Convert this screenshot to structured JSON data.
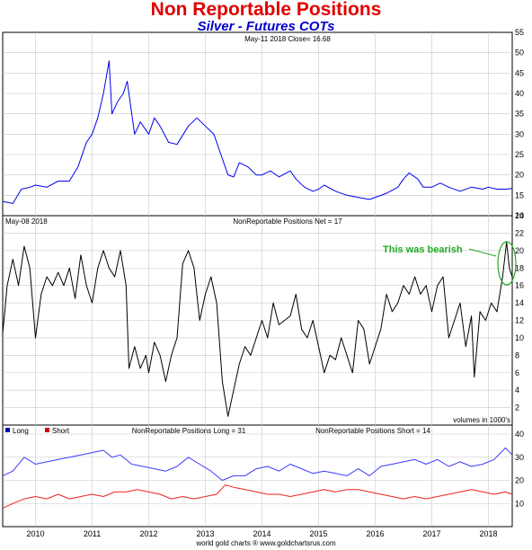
{
  "page": {
    "title": "Non Reportable Positions",
    "subtitle": "Silver - Futures COTs"
  },
  "colors": {
    "title": "#e00000",
    "subtitle": "#0000cc",
    "price": "#0000ee",
    "net": "#000000",
    "long": "#3a3aff",
    "short": "#ee2222",
    "annotation": "#22aa22"
  },
  "footer": "world gold charts ® www.goldchartsrus.com",
  "chart_data": [
    {
      "type": "line",
      "header": "May-11  2018   Close= 16.68",
      "x_range": [
        2009.42,
        2018.42
      ],
      "ylim": [
        10,
        55
      ],
      "yticks": [
        10,
        15,
        20,
        25,
        30,
        35,
        40,
        45,
        50,
        55
      ],
      "grid": true,
      "series": [
        {
          "color": "#0000ee",
          "points": [
            [
              2009.42,
              13.5
            ],
            [
              2009.6,
              13.0
            ],
            [
              2009.75,
              16.5
            ],
            [
              2009.9,
              17.0
            ],
            [
              2010.0,
              17.5
            ],
            [
              2010.2,
              17.0
            ],
            [
              2010.4,
              18.5
            ],
            [
              2010.6,
              18.5
            ],
            [
              2010.75,
              22.0
            ],
            [
              2010.9,
              28.0
            ],
            [
              2011.0,
              30.0
            ],
            [
              2011.1,
              34.0
            ],
            [
              2011.2,
              40.0
            ],
            [
              2011.3,
              48.0
            ],
            [
              2011.35,
              35.0
            ],
            [
              2011.45,
              38.0
            ],
            [
              2011.55,
              40.0
            ],
            [
              2011.62,
              43.0
            ],
            [
              2011.7,
              35.0
            ],
            [
              2011.75,
              30.0
            ],
            [
              2011.85,
              33.0
            ],
            [
              2012.0,
              30.0
            ],
            [
              2012.1,
              34.0
            ],
            [
              2012.2,
              32.0
            ],
            [
              2012.35,
              28.0
            ],
            [
              2012.5,
              27.5
            ],
            [
              2012.7,
              32.0
            ],
            [
              2012.85,
              34.0
            ],
            [
              2013.0,
              32.0
            ],
            [
              2013.15,
              30.0
            ],
            [
              2013.3,
              24.0
            ],
            [
              2013.4,
              20.0
            ],
            [
              2013.5,
              19.5
            ],
            [
              2013.6,
              23.0
            ],
            [
              2013.75,
              22.0
            ],
            [
              2013.9,
              20.0
            ],
            [
              2014.0,
              20.0
            ],
            [
              2014.15,
              21.0
            ],
            [
              2014.3,
              19.5
            ],
            [
              2014.5,
              21.0
            ],
            [
              2014.6,
              19.0
            ],
            [
              2014.75,
              17.0
            ],
            [
              2014.9,
              16.0
            ],
            [
              2015.0,
              16.5
            ],
            [
              2015.1,
              17.5
            ],
            [
              2015.3,
              16.0
            ],
            [
              2015.5,
              15.0
            ],
            [
              2015.7,
              14.5
            ],
            [
              2015.9,
              14.0
            ],
            [
              2016.0,
              14.5
            ],
            [
              2016.2,
              15.5
            ],
            [
              2016.4,
              17.0
            ],
            [
              2016.5,
              19.0
            ],
            [
              2016.6,
              20.5
            ],
            [
              2016.75,
              19.0
            ],
            [
              2016.85,
              17.0
            ],
            [
              2017.0,
              17.0
            ],
            [
              2017.15,
              18.0
            ],
            [
              2017.3,
              17.0
            ],
            [
              2017.5,
              16.0
            ],
            [
              2017.7,
              17.0
            ],
            [
              2017.9,
              16.5
            ],
            [
              2018.0,
              17.0
            ],
            [
              2018.15,
              16.5
            ],
            [
              2018.3,
              16.5
            ],
            [
              2018.42,
              16.68
            ]
          ]
        }
      ]
    },
    {
      "type": "line",
      "date_label": "May-08  2018",
      "header": "NonReportable Positions Net = 17",
      "note": "volumes in 1000's",
      "annotation": "This was bearish",
      "x_range": [
        2009.42,
        2018.42
      ],
      "ylim": [
        0,
        24
      ],
      "yticks": [
        2,
        4,
        6,
        8,
        10,
        12,
        14,
        16,
        18,
        20,
        22,
        24
      ],
      "grid": true,
      "series": [
        {
          "color": "#000000",
          "points": [
            [
              2009.42,
              10.5
            ],
            [
              2009.5,
              16.0
            ],
            [
              2009.6,
              19.0
            ],
            [
              2009.7,
              16.0
            ],
            [
              2009.8,
              20.5
            ],
            [
              2009.9,
              18.0
            ],
            [
              2010.0,
              10.0
            ],
            [
              2010.1,
              15.0
            ],
            [
              2010.2,
              17.0
            ],
            [
              2010.3,
              16.0
            ],
            [
              2010.4,
              17.5
            ],
            [
              2010.5,
              16.0
            ],
            [
              2010.6,
              18.0
            ],
            [
              2010.7,
              14.5
            ],
            [
              2010.8,
              19.5
            ],
            [
              2010.9,
              16.0
            ],
            [
              2011.0,
              14.0
            ],
            [
              2011.1,
              18.0
            ],
            [
              2011.2,
              20.0
            ],
            [
              2011.3,
              18.0
            ],
            [
              2011.4,
              17.0
            ],
            [
              2011.5,
              20.0
            ],
            [
              2011.6,
              16.0
            ],
            [
              2011.65,
              6.5
            ],
            [
              2011.75,
              9.0
            ],
            [
              2011.85,
              6.5
            ],
            [
              2011.95,
              8.0
            ],
            [
              2012.0,
              6.0
            ],
            [
              2012.1,
              9.5
            ],
            [
              2012.2,
              8.0
            ],
            [
              2012.3,
              5.0
            ],
            [
              2012.4,
              8.0
            ],
            [
              2012.5,
              10.0
            ],
            [
              2012.6,
              18.5
            ],
            [
              2012.7,
              20.0
            ],
            [
              2012.8,
              18.0
            ],
            [
              2012.9,
              12.0
            ],
            [
              2013.0,
              15.0
            ],
            [
              2013.1,
              17.0
            ],
            [
              2013.2,
              14.0
            ],
            [
              2013.3,
              5.0
            ],
            [
              2013.4,
              1.0
            ],
            [
              2013.5,
              4.0
            ],
            [
              2013.6,
              7.0
            ],
            [
              2013.7,
              9.0
            ],
            [
              2013.8,
              8.0
            ],
            [
              2013.9,
              10.0
            ],
            [
              2014.0,
              12.0
            ],
            [
              2014.1,
              10.0
            ],
            [
              2014.2,
              14.0
            ],
            [
              2014.3,
              11.5
            ],
            [
              2014.4,
              12.0
            ],
            [
              2014.5,
              12.5
            ],
            [
              2014.6,
              15.0
            ],
            [
              2014.7,
              11.0
            ],
            [
              2014.8,
              10.0
            ],
            [
              2014.9,
              12.0
            ],
            [
              2015.0,
              9.0
            ],
            [
              2015.1,
              6.0
            ],
            [
              2015.2,
              8.0
            ],
            [
              2015.3,
              7.5
            ],
            [
              2015.4,
              10.0
            ],
            [
              2015.5,
              8.0
            ],
            [
              2015.6,
              6.0
            ],
            [
              2015.7,
              12.0
            ],
            [
              2015.8,
              11.0
            ],
            [
              2015.9,
              7.0
            ],
            [
              2016.0,
              9.0
            ],
            [
              2016.1,
              11.0
            ],
            [
              2016.2,
              15.0
            ],
            [
              2016.3,
              13.0
            ],
            [
              2016.4,
              14.0
            ],
            [
              2016.5,
              16.0
            ],
            [
              2016.6,
              15.0
            ],
            [
              2016.7,
              17.0
            ],
            [
              2016.8,
              15.0
            ],
            [
              2016.9,
              16.0
            ],
            [
              2017.0,
              13.0
            ],
            [
              2017.1,
              16.0
            ],
            [
              2017.2,
              17.0
            ],
            [
              2017.3,
              10.0
            ],
            [
              2017.4,
              12.0
            ],
            [
              2017.5,
              14.0
            ],
            [
              2017.6,
              9.0
            ],
            [
              2017.7,
              12.5
            ],
            [
              2017.75,
              5.5
            ],
            [
              2017.85,
              13.0
            ],
            [
              2017.95,
              12.0
            ],
            [
              2018.05,
              14.0
            ],
            [
              2018.15,
              13.0
            ],
            [
              2018.25,
              17.0
            ],
            [
              2018.32,
              21.0
            ],
            [
              2018.37,
              18.0
            ],
            [
              2018.42,
              17.0
            ]
          ]
        }
      ]
    },
    {
      "type": "line",
      "header_long": "NonReportable Positions Long = 31",
      "header_short": "NonReportable Positions Short = 14",
      "x_range": [
        2009.42,
        2018.42
      ],
      "ylim": [
        0,
        40
      ],
      "yticks": [
        10,
        20,
        30,
        40
      ],
      "grid": true,
      "xticks": [
        "2010",
        "2011",
        "2012",
        "2013",
        "2014",
        "2015",
        "2016",
        "2017",
        "2018"
      ],
      "legend": [
        "Long",
        "Short"
      ],
      "series": [
        {
          "name": "Long",
          "color": "#3a3aff",
          "points": [
            [
              2009.42,
              22
            ],
            [
              2009.6,
              24
            ],
            [
              2009.8,
              30
            ],
            [
              2010.0,
              27
            ],
            [
              2010.2,
              28
            ],
            [
              2010.4,
              29
            ],
            [
              2010.6,
              30
            ],
            [
              2010.8,
              31
            ],
            [
              2011.0,
              32
            ],
            [
              2011.2,
              33
            ],
            [
              2011.35,
              30
            ],
            [
              2011.5,
              31
            ],
            [
              2011.7,
              27
            ],
            [
              2011.9,
              26
            ],
            [
              2012.1,
              25
            ],
            [
              2012.3,
              24
            ],
            [
              2012.5,
              26
            ],
            [
              2012.7,
              30
            ],
            [
              2012.9,
              27
            ],
            [
              2013.1,
              24
            ],
            [
              2013.3,
              20
            ],
            [
              2013.5,
              22
            ],
            [
              2013.7,
              22
            ],
            [
              2013.9,
              25
            ],
            [
              2014.1,
              26
            ],
            [
              2014.3,
              24
            ],
            [
              2014.5,
              27
            ],
            [
              2014.7,
              25
            ],
            [
              2014.9,
              23
            ],
            [
              2015.1,
              24
            ],
            [
              2015.3,
              23
            ],
            [
              2015.5,
              22
            ],
            [
              2015.7,
              25
            ],
            [
              2015.9,
              22
            ],
            [
              2016.1,
              26
            ],
            [
              2016.3,
              27
            ],
            [
              2016.5,
              28
            ],
            [
              2016.7,
              29
            ],
            [
              2016.9,
              27
            ],
            [
              2017.1,
              29
            ],
            [
              2017.3,
              26
            ],
            [
              2017.5,
              28
            ],
            [
              2017.7,
              26
            ],
            [
              2017.9,
              27
            ],
            [
              2018.1,
              29
            ],
            [
              2018.3,
              34
            ],
            [
              2018.42,
              31
            ]
          ]
        },
        {
          "name": "Short",
          "color": "#ee2222",
          "points": [
            [
              2009.42,
              8
            ],
            [
              2009.6,
              10
            ],
            [
              2009.8,
              12
            ],
            [
              2010.0,
              13
            ],
            [
              2010.2,
              12
            ],
            [
              2010.4,
              14
            ],
            [
              2010.6,
              12
            ],
            [
              2010.8,
              13
            ],
            [
              2011.0,
              14
            ],
            [
              2011.2,
              13
            ],
            [
              2011.4,
              15
            ],
            [
              2011.6,
              15
            ],
            [
              2011.8,
              16
            ],
            [
              2012.0,
              15
            ],
            [
              2012.2,
              14
            ],
            [
              2012.4,
              12
            ],
            [
              2012.6,
              13
            ],
            [
              2012.8,
              12
            ],
            [
              2013.0,
              13
            ],
            [
              2013.2,
              14
            ],
            [
              2013.35,
              18
            ],
            [
              2013.5,
              17
            ],
            [
              2013.7,
              16
            ],
            [
              2013.9,
              15
            ],
            [
              2014.1,
              14
            ],
            [
              2014.3,
              14
            ],
            [
              2014.5,
              13
            ],
            [
              2014.7,
              14
            ],
            [
              2014.9,
              15
            ],
            [
              2015.1,
              16
            ],
            [
              2015.3,
              15
            ],
            [
              2015.5,
              16
            ],
            [
              2015.7,
              16
            ],
            [
              2015.9,
              15
            ],
            [
              2016.1,
              14
            ],
            [
              2016.3,
              13
            ],
            [
              2016.5,
              12
            ],
            [
              2016.7,
              13
            ],
            [
              2016.9,
              12
            ],
            [
              2017.1,
              13
            ],
            [
              2017.3,
              14
            ],
            [
              2017.5,
              15
            ],
            [
              2017.7,
              16
            ],
            [
              2017.9,
              15
            ],
            [
              2018.1,
              14
            ],
            [
              2018.3,
              15
            ],
            [
              2018.42,
              14
            ]
          ]
        }
      ]
    }
  ]
}
